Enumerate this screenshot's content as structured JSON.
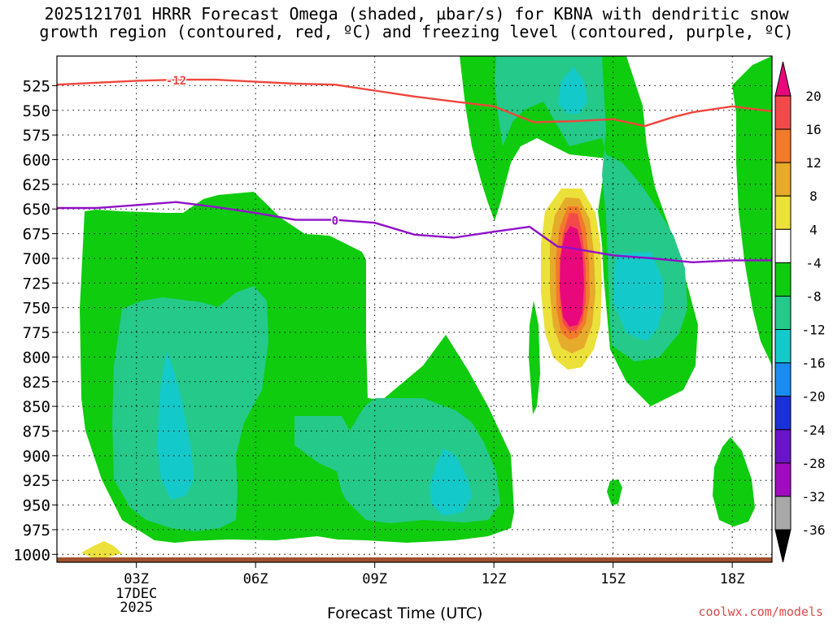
{
  "title_line1": "2025121701 HRRR Forecast Omega (shaded, µbar/s) for KBNA with dendritic snow",
  "title_line2": "growth region (contoured, red, ºC) and freezing level (contoured, purple, ºC)",
  "credit": "coolwx.com/models",
  "chart_data": {
    "type": "heatmap",
    "xlabel": "Forecast Time (UTC)",
    "x_ticks": [
      {
        "hour": 3,
        "label": "03Z"
      },
      {
        "hour": 6,
        "label": "06Z"
      },
      {
        "hour": 9,
        "label": "09Z"
      },
      {
        "hour": 12,
        "label": "12Z"
      },
      {
        "hour": 15,
        "label": "15Z"
      },
      {
        "hour": 18,
        "label": "18Z"
      }
    ],
    "x_date_lines": [
      "17DEC",
      "2025"
    ],
    "xlim": [
      1,
      19
    ],
    "y_ticks": [
      525,
      550,
      575,
      600,
      625,
      650,
      675,
      700,
      725,
      750,
      775,
      800,
      825,
      850,
      875,
      900,
      925,
      950,
      975,
      1000
    ],
    "ylim": [
      1008,
      495
    ],
    "grid": "dotted",
    "colorbar": {
      "labels": [
        "20",
        "16",
        "12",
        "8",
        "4",
        "-4",
        "-8",
        "-12",
        "-16",
        "-20",
        "-24",
        "-28",
        "-32",
        "-36"
      ],
      "colors": [
        "#e8087c",
        "#f24a4a",
        "#f37a2a",
        "#e6ab2a",
        "#ece13a",
        "#ffffff",
        "#0fcc0f",
        "#25c98a",
        "#14c9c9",
        "#1a8cf0",
        "#1c30d8",
        "#6a14c8",
        "#a00cc0",
        "#a8a8a8",
        "#000000"
      ],
      "placement": "right"
    },
    "contours": [
      {
        "name": "-12",
        "color": "#f0463c",
        "points": [
          [
            1,
            524
          ],
          [
            2,
            522
          ],
          [
            3,
            520
          ],
          [
            4,
            519
          ],
          [
            5,
            519
          ],
          [
            6,
            521
          ],
          [
            7,
            523
          ],
          [
            8,
            524
          ],
          [
            9,
            530
          ],
          [
            10,
            536
          ],
          [
            11,
            541
          ],
          [
            12,
            546
          ],
          [
            13,
            562
          ],
          [
            14,
            561
          ],
          [
            15,
            559
          ],
          [
            15.8,
            566
          ],
          [
            16.5,
            557
          ],
          [
            17,
            552
          ],
          [
            18,
            546
          ],
          [
            19,
            551
          ]
        ]
      },
      {
        "name": "0",
        "color": "#9010c8",
        "points": [
          [
            1,
            649
          ],
          [
            2,
            649
          ],
          [
            3,
            646
          ],
          [
            4,
            643
          ],
          [
            5,
            648
          ],
          [
            6,
            654
          ],
          [
            7,
            661
          ],
          [
            8,
            661
          ],
          [
            9,
            664
          ],
          [
            10,
            676
          ],
          [
            11,
            679
          ],
          [
            12,
            673
          ],
          [
            12.9,
            668
          ],
          [
            13.6,
            688
          ],
          [
            14,
            690
          ],
          [
            15,
            697
          ],
          [
            16,
            700
          ],
          [
            17,
            704
          ],
          [
            18,
            702
          ],
          [
            19,
            702
          ]
        ]
      }
    ],
    "shaded_regions": [
      {
        "value": "-8",
        "color": "#0fcc0f",
        "label": "low-level broad region"
      },
      {
        "value": "-12",
        "color": "#25c98a",
        "label": "interior"
      },
      {
        "value": "-16",
        "color": "#14c9c9",
        "label": "core"
      },
      {
        "value": "20",
        "color": "#e8087c",
        "label": "upward maximum near 14Z 700 mb"
      },
      {
        "value": "4",
        "color": "#ece13a",
        "label": "near 02Z 990 mb"
      }
    ],
    "surface_color": "#a0522d"
  }
}
